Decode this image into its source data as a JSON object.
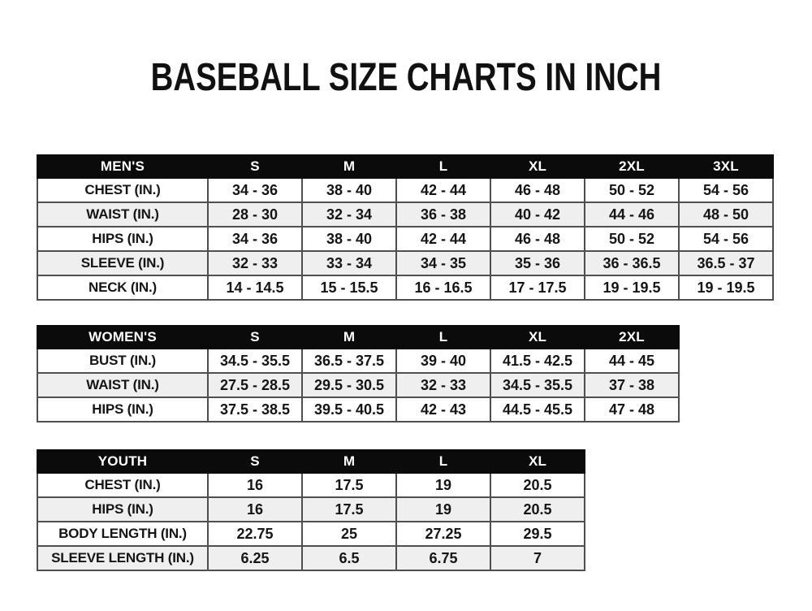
{
  "title": "BASEBALL SIZE CHARTS IN INCH",
  "colors": {
    "header_bg": "#0b0b0b",
    "header_text": "#ffffff",
    "row_alt_bg": "#efefef",
    "border": "#4f4f4f",
    "text": "#151515",
    "background": "#ffffff"
  },
  "chart_data": [
    {
      "type": "table",
      "title": "MEN'S",
      "columns": [
        "S",
        "M",
        "L",
        "XL",
        "2XL",
        "3XL"
      ],
      "rows": [
        {
          "label": "CHEST (IN.)",
          "values": [
            "34 - 36",
            "38 - 40",
            "42 - 44",
            "46 - 48",
            "50 - 52",
            "54 - 56"
          ]
        },
        {
          "label": "WAIST (IN.)",
          "values": [
            "28 - 30",
            "32 - 34",
            "36 - 38",
            "40 - 42",
            "44 - 46",
            "48 - 50"
          ]
        },
        {
          "label": "HIPS (IN.)",
          "values": [
            "34 - 36",
            "38 - 40",
            "42 - 44",
            "46 - 48",
            "50 - 52",
            "54 - 56"
          ]
        },
        {
          "label": "SLEEVE (IN.)",
          "values": [
            "32 - 33",
            "33 - 34",
            "34 - 35",
            "35 - 36",
            "36 - 36.5",
            "36.5 - 37"
          ]
        },
        {
          "label": "NECK (IN.)",
          "values": [
            "14 - 14.5",
            "15 - 15.5",
            "16 - 16.5",
            "17 - 17.5",
            "19 - 19.5",
            "19 - 19.5"
          ]
        }
      ]
    },
    {
      "type": "table",
      "title": "WOMEN'S",
      "columns": [
        "S",
        "M",
        "L",
        "XL",
        "2XL"
      ],
      "rows": [
        {
          "label": "BUST (IN.)",
          "values": [
            "34.5 - 35.5",
            "36.5 - 37.5",
            "39 - 40",
            "41.5 - 42.5",
            "44 - 45"
          ]
        },
        {
          "label": "WAIST (IN.)",
          "values": [
            "27.5 - 28.5",
            "29.5 - 30.5",
            "32 - 33",
            "34.5 - 35.5",
            "37 - 38"
          ]
        },
        {
          "label": "HIPS (IN.)",
          "values": [
            "37.5 - 38.5",
            "39.5 - 40.5",
            "42 - 43",
            "44.5 - 45.5",
            "47 - 48"
          ]
        }
      ]
    },
    {
      "type": "table",
      "title": "YOUTH",
      "columns": [
        "S",
        "M",
        "L",
        "XL"
      ],
      "rows": [
        {
          "label": "CHEST (IN.)",
          "values": [
            "16",
            "17.5",
            "19",
            "20.5"
          ]
        },
        {
          "label": "HIPS (IN.)",
          "values": [
            "16",
            "17.5",
            "19",
            "20.5"
          ]
        },
        {
          "label": "BODY LENGTH (IN.)",
          "values": [
            "22.75",
            "25",
            "27.25",
            "29.5"
          ]
        },
        {
          "label": "SLEEVE LENGTH (IN.)",
          "values": [
            "6.25",
            "6.5",
            "6.75",
            "7"
          ]
        }
      ]
    }
  ]
}
